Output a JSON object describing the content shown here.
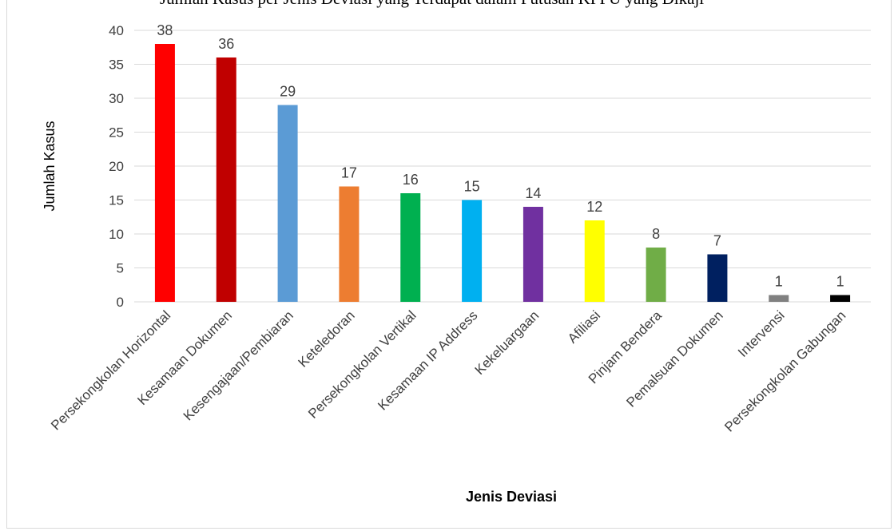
{
  "caption": "Jumlah Kasus per Jenis Deviasi yang Terdapat dalam Putusan KPPU yang Dikaji",
  "chart_data": {
    "type": "bar",
    "categories": [
      "Persekongkolan Horizontal",
      "Kesamaan Dokumen",
      "Kesengajaan/Pembiaran",
      "Keteledoran",
      "Persekongkolan Vertikal",
      "Kesamaan IP Address",
      "Kekeluargaan",
      "Afiliasi",
      "Pinjam Bendera",
      "Pemalsuan Dokumen",
      "Intervensi",
      "Persekongkolan Gabungan"
    ],
    "values": [
      38,
      36,
      29,
      17,
      16,
      15,
      14,
      12,
      8,
      7,
      1,
      1
    ],
    "colors": [
      "#ff0000",
      "#c00000",
      "#5b9bd5",
      "#ed7d31",
      "#00b050",
      "#00b0f0",
      "#7030a0",
      "#ffff00",
      "#70ad47",
      "#002060",
      "#808080",
      "#000000"
    ],
    "title": "",
    "xlabel": "Jenis Deviasi",
    "ylabel": "Jumlah Kasus",
    "ylim": [
      0,
      40
    ],
    "yticks": [
      0,
      5,
      10,
      15,
      20,
      25,
      30,
      35,
      40
    ],
    "grid": true,
    "gridColor": "#d9d9d9"
  }
}
